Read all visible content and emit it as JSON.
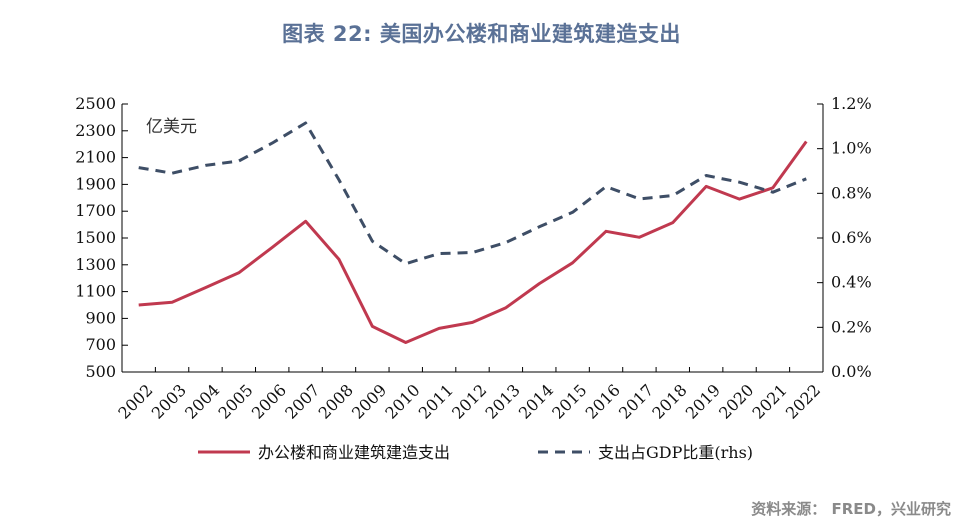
{
  "title": "图表 22: 美国办公楼和商业建筑建造支出",
  "source": "资料来源： FRED，兴业研究",
  "chart_data": {
    "type": "line",
    "categories": [
      "2002",
      "2003",
      "2004",
      "2005",
      "2006",
      "2007",
      "2008",
      "2009",
      "2010",
      "2011",
      "2012",
      "2013",
      "2014",
      "2015",
      "2016",
      "2017",
      "2018",
      "2019",
      "2020",
      "2021",
      "2022"
    ],
    "unit_label": "亿美元",
    "left_axis": {
      "ylim": [
        500,
        2500
      ],
      "ticks": [
        500,
        700,
        900,
        1100,
        1300,
        1500,
        1700,
        1900,
        2100,
        2300,
        2500
      ]
    },
    "right_axis": {
      "ylim": [
        0,
        1.2
      ],
      "ticks": [
        0.0,
        0.2,
        0.4,
        0.6,
        0.8,
        1.0,
        1.2
      ],
      "tick_labels": [
        "0.0%",
        "0.2%",
        "0.4%",
        "0.6%",
        "0.8%",
        "1.0%",
        "1.2%"
      ]
    },
    "series": [
      {
        "name": "办公楼和商业建筑建造支出",
        "axis": "left",
        "style": "solid",
        "color": "#c0394f",
        "values": [
          1000,
          1020,
          1130,
          1240,
          1430,
          1625,
          1340,
          840,
          720,
          825,
          870,
          980,
          1160,
          1315,
          1550,
          1505,
          1615,
          1885,
          1790,
          1875,
          2220
        ]
      },
      {
        "name": "支出占GDP比重(rhs)",
        "axis": "right",
        "style": "dashed",
        "color": "#3e4e66",
        "values": [
          0.915,
          0.89,
          0.925,
          0.945,
          1.025,
          1.115,
          0.86,
          0.585,
          0.485,
          0.53,
          0.535,
          0.58,
          0.65,
          0.715,
          0.83,
          0.775,
          0.79,
          0.88,
          0.85,
          0.805,
          0.865
        ]
      }
    ],
    "legend_position": "bottom",
    "grid": false
  }
}
